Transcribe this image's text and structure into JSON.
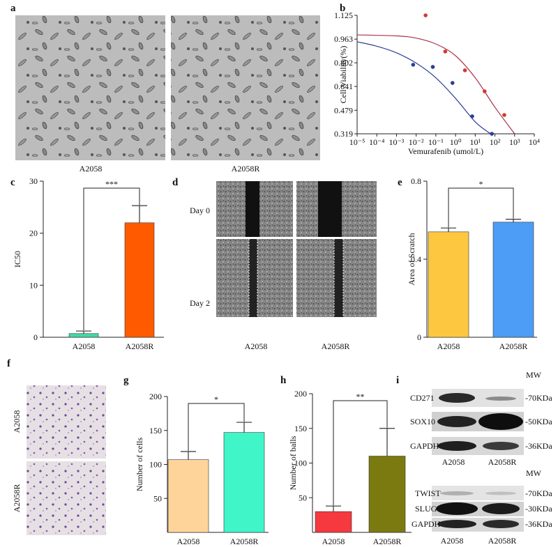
{
  "images": [
    {
      "panel": "a",
      "labels": [
        "A2058",
        "A2058R"
      ]
    },
    {
      "panel": "d",
      "rows": [
        "Day 0",
        "Day 2"
      ],
      "columns": [
        "A2058",
        "A2058R"
      ]
    },
    {
      "panel": "f",
      "rows": [
        "A2058",
        "A2058R"
      ]
    },
    {
      "panel": "i",
      "blots": [
        {
          "mw_header": "MW",
          "rows": [
            {
              "protein": "CD271",
              "mw": "-70KDa"
            },
            {
              "protein": "SOX10",
              "mw": "-50KDa"
            },
            {
              "protein": "GAPDH",
              "mw": "-36KDa"
            }
          ],
          "lanes": [
            "A2058",
            "A2058R"
          ]
        },
        {
          "mw_header": "MW",
          "rows": [
            {
              "protein": "TWIST",
              "mw": "-70KDa"
            },
            {
              "protein": "SLUG",
              "mw": "-30KDa"
            },
            {
              "protein": "GAPDH",
              "mw": "-36KDa"
            }
          ],
          "lanes": [
            "A2058",
            "A2058R"
          ]
        }
      ]
    }
  ],
  "chart_data": [
    {
      "type": "scatter",
      "panel": "b",
      "xlabel": "Vemurafenib (umol/L)",
      "ylabel": "Cell Viability(%)",
      "xscale": "log",
      "xlim": [
        1e-05,
        10000
      ],
      "xticks": [
        {
          "value": 1e-05,
          "label": "10⁻⁵"
        },
        {
          "value": 0.0001,
          "label": "10⁻⁴"
        },
        {
          "value": 0.001,
          "label": "10⁻³"
        },
        {
          "value": 0.01,
          "label": "10⁻²"
        },
        {
          "value": 0.1,
          "label": "10⁻¹"
        },
        {
          "value": 1,
          "label": "10⁰"
        },
        {
          "value": 10,
          "label": "10¹"
        },
        {
          "value": 100,
          "label": "10²"
        },
        {
          "value": 1000,
          "label": "10³"
        },
        {
          "value": 10000,
          "label": "10⁴"
        }
      ],
      "ylim": [
        0.319,
        1.125
      ],
      "yticks": [
        0.319,
        0.479,
        0.641,
        0.802,
        0.963,
        1.125
      ],
      "series": [
        {
          "color": "#2c3e99",
          "x": [
            0.007,
            0.07,
            0.7,
            7,
            70
          ],
          "values": [
            0.789,
            0.774,
            0.665,
            0.438,
            0.319
          ]
        },
        {
          "color": "#d1392e",
          "x": [
            0.03,
            0.3,
            3,
            30,
            300
          ],
          "values": [
            1.125,
            0.879,
            0.751,
            0.608,
            0.447
          ]
        }
      ],
      "fits": [
        {
          "color": "#2c3e99",
          "x": [
            1e-05,
            0.0001,
            0.001,
            0.01,
            0.1,
            1,
            10,
            60
          ],
          "values": [
            0.945,
            0.915,
            0.87,
            0.8,
            0.7,
            0.56,
            0.4,
            0.319
          ]
        },
        {
          "color": "#a8324a",
          "x": [
            1e-05,
            0.001,
            0.01,
            0.1,
            1,
            10,
            100,
            1000
          ],
          "values": [
            0.992,
            0.985,
            0.97,
            0.93,
            0.85,
            0.7,
            0.5,
            0.319
          ]
        }
      ]
    },
    {
      "type": "bar",
      "panel": "c",
      "ylabel": "IC50",
      "categories": [
        "A2058",
        "A2058R"
      ],
      "values": [
        0.7,
        22
      ],
      "errors": [
        0.5,
        3.3
      ],
      "colors": [
        "#40d9a8",
        "#ff5a00"
      ],
      "ylim": [
        0,
        30
      ],
      "yticks": [
        0,
        10,
        20,
        30
      ],
      "significance": "***"
    },
    {
      "type": "bar",
      "panel": "e",
      "ylabel": "Area of Scratch",
      "categories": [
        "A2058",
        "A2058R"
      ],
      "values": [
        0.54,
        0.59
      ],
      "errors": [
        0.02,
        0.015
      ],
      "colors": [
        "#fdc840",
        "#4d9cf5"
      ],
      "ylim": [
        0,
        0.8
      ],
      "yticks": [
        0,
        0.4,
        0.8
      ],
      "significance": "*"
    },
    {
      "type": "bar",
      "panel": "g",
      "ylabel": "Number of cells",
      "categories": [
        "A2058",
        "A2058R"
      ],
      "values": [
        107,
        147
      ],
      "errors": [
        12,
        15
      ],
      "colors": [
        "#fed49a",
        "#40f5c8"
      ],
      "ylim": [
        0,
        200
      ],
      "yticks": [
        50,
        100,
        150,
        200
      ],
      "significance": "*"
    },
    {
      "type": "bar",
      "panel": "h",
      "ylabel": "Number of balls",
      "categories": [
        "A2058",
        "A2058R"
      ],
      "values": [
        30,
        110
      ],
      "errors": [
        8,
        40
      ],
      "colors": [
        "#f5393f",
        "#7a7a10"
      ],
      "ylim": [
        0,
        200
      ],
      "yticks": [
        50,
        100,
        150,
        200
      ],
      "significance": "**"
    }
  ]
}
